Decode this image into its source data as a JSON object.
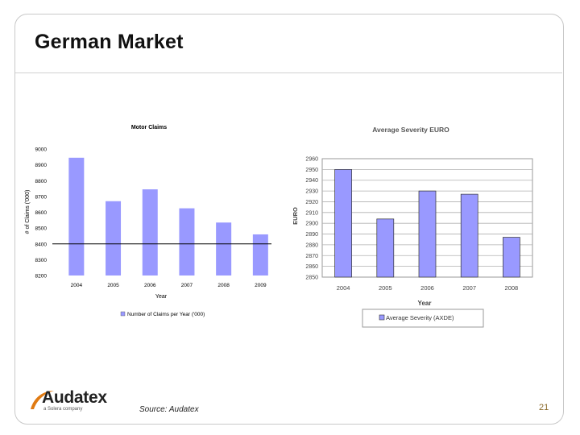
{
  "slide": {
    "title": "German Market",
    "source": "Source: Audatex",
    "page_number": "21",
    "logo": {
      "name": "Audatex",
      "sub": "a Solera company",
      "swoosh_color": "#e07a12"
    }
  },
  "chart_data": [
    {
      "type": "bar",
      "title": "Motor Claims",
      "xlabel": "Year",
      "ylabel": "# of Claims ('000)",
      "categories": [
        "2004",
        "2005",
        "2006",
        "2007",
        "2008",
        "2009"
      ],
      "values": [
        8945,
        8670,
        8745,
        8625,
        8535,
        8460
      ],
      "ylim": [
        8200,
        9000
      ],
      "yticks": [
        "9000",
        "8900",
        "8800",
        "8700",
        "8600",
        "8500",
        "8400",
        "8300",
        "8200"
      ],
      "ytick_values": [
        9000,
        8900,
        8800,
        8700,
        8600,
        8500,
        8400,
        8300,
        8200
      ],
      "reference_line_value": 8400,
      "legend": "Number of Claims per Year ('000)",
      "bar_color": "#9999ff",
      "grid": false
    },
    {
      "type": "bar",
      "title": "Average Severity EURO",
      "xlabel": "Year",
      "ylabel": "EURO",
      "categories": [
        "2004",
        "2005",
        "2006",
        "2007",
        "2008"
      ],
      "values": [
        2950,
        2904,
        2930,
        2927,
        2887
      ],
      "ylim": [
        2850,
        2960
      ],
      "yticks": [
        "2960",
        "2950",
        "2940",
        "2930",
        "2920",
        "2910",
        "2900",
        "2890",
        "2880",
        "2870",
        "2860",
        "2850"
      ],
      "ytick_values": [
        2960,
        2950,
        2940,
        2930,
        2920,
        2910,
        2900,
        2890,
        2880,
        2870,
        2860,
        2850
      ],
      "legend": "Average Severity (AXDE)",
      "legend_position": "bottom",
      "bar_color": "#9999ff",
      "grid": true
    }
  ]
}
